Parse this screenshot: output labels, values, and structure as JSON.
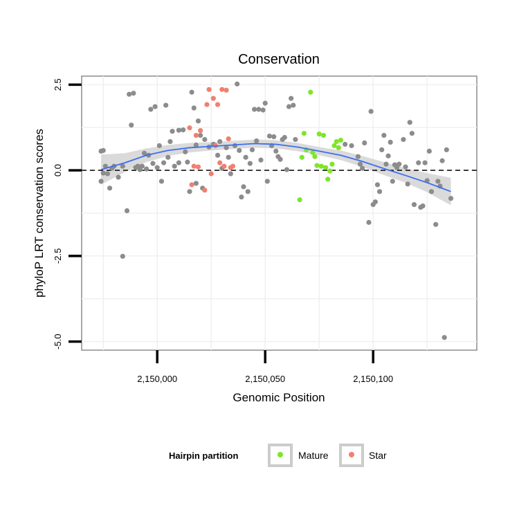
{
  "chart_data": {
    "type": "scatter",
    "title": "Conservation",
    "xlabel": "Genomic Position",
    "ylabel": "phyloP LRT conservation scores",
    "xlim": [
      2149965,
      2150148
    ],
    "ylim": [
      -5.25,
      2.75
    ],
    "x_ticks": [
      {
        "value": 2150000,
        "label": "2,150,000"
      },
      {
        "value": 2150050,
        "label": "2,150,050"
      },
      {
        "value": 2150100,
        "label": "2,150,100"
      }
    ],
    "y_ticks": [
      {
        "value": 2.5,
        "label": "2.5"
      },
      {
        "value": 0.0,
        "label": "0.0"
      },
      {
        "value": -2.5,
        "label": "-2.5"
      },
      {
        "value": -5.0,
        "label": "-5.0"
      }
    ],
    "reference_line": {
      "y": 0,
      "style": "dashed"
    },
    "grid": true,
    "legend": {
      "title": "Hairpin partition",
      "position": "bottom",
      "entries": [
        {
          "label": "Mature",
          "color": "#7fe52b"
        },
        {
          "label": "Star",
          "color": "#f08070"
        }
      ]
    },
    "colors": {
      "other": "#8c8c8c",
      "Mature": "#7fe52b",
      "Star": "#f08070",
      "smooth": "#3a6ef0",
      "band": "#d3d3d3"
    },
    "series": [
      {
        "group": "other",
        "points": [
          [
            2149974,
            0.56
          ],
          [
            2149975,
            0.58
          ],
          [
            2149974,
            -0.32
          ],
          [
            2149975,
            -0.08
          ],
          [
            2149976,
            0.12
          ],
          [
            2149977,
            -0.1
          ],
          [
            2149978,
            -0.52
          ],
          [
            2149979,
            0.06
          ],
          [
            2149980,
            0.12
          ],
          [
            2149982,
            -0.2
          ],
          [
            2149984,
            0.12
          ],
          [
            2149984,
            -2.51
          ],
          [
            2149986,
            -1.18
          ],
          [
            2149987,
            2.22
          ],
          [
            2149989,
            2.25
          ],
          [
            2149988,
            1.32
          ],
          [
            2149990,
            0.08
          ],
          [
            2149991,
            0.12
          ],
          [
            2149992,
            0.02
          ],
          [
            2149993,
            0.12
          ],
          [
            2149994,
            0.5
          ],
          [
            2149995,
            0.04
          ],
          [
            2149996,
            0.44
          ],
          [
            2149997,
            1.78
          ],
          [
            2149998,
            0.2
          ],
          [
            2149999,
            1.86
          ],
          [
            2150000,
            0.08
          ],
          [
            2150001,
            0.72
          ],
          [
            2150002,
            -0.32
          ],
          [
            2150003,
            0.22
          ],
          [
            2150004,
            1.9
          ],
          [
            2150005,
            0.38
          ],
          [
            2150006,
            0.84
          ],
          [
            2150007,
            1.14
          ],
          [
            2150008,
            0.12
          ],
          [
            2150010,
            1.17
          ],
          [
            2150010,
            0.22
          ],
          [
            2150012,
            1.18
          ],
          [
            2150013,
            0.54
          ],
          [
            2150014,
            0.24
          ],
          [
            2150015,
            -0.62
          ],
          [
            2150016,
            2.28
          ],
          [
            2150017,
            1.82
          ],
          [
            2150018,
            -0.38
          ],
          [
            2150018,
            0.74
          ],
          [
            2150019,
            1.44
          ],
          [
            2150020,
            1.02
          ],
          [
            2150021,
            -0.52
          ],
          [
            2150022,
            0.9
          ],
          [
            2150024,
            0.68
          ],
          [
            2150026,
            0.76
          ],
          [
            2150028,
            0.44
          ],
          [
            2150029,
            0.84
          ],
          [
            2150030,
            0.06
          ],
          [
            2150032,
            0.66
          ],
          [
            2150033,
            0.38
          ],
          [
            2150034,
            -0.1
          ],
          [
            2150036,
            0.72
          ],
          [
            2150037,
            2.52
          ],
          [
            2150038,
            0.58
          ],
          [
            2150039,
            -0.78
          ],
          [
            2150040,
            -0.48
          ],
          [
            2150041,
            0.38
          ],
          [
            2150042,
            -0.62
          ],
          [
            2150043,
            0.2
          ],
          [
            2150044,
            0.6
          ],
          [
            2150045,
            1.78
          ],
          [
            2150046,
            0.86
          ],
          [
            2150047,
            1.78
          ],
          [
            2150048,
            0.3
          ],
          [
            2150049,
            1.76
          ],
          [
            2150050,
            1.96
          ],
          [
            2150051,
            -0.32
          ],
          [
            2150052,
            1.0
          ],
          [
            2150053,
            0.72
          ],
          [
            2150054,
            0.98
          ],
          [
            2150055,
            0.56
          ],
          [
            2150056,
            0.4
          ],
          [
            2150057,
            0.32
          ],
          [
            2150058,
            0.9
          ],
          [
            2150059,
            0.96
          ],
          [
            2150060,
            0.02
          ],
          [
            2150061,
            1.86
          ],
          [
            2150062,
            2.1
          ],
          [
            2150063,
            1.9
          ],
          [
            2150064,
            0.9
          ],
          [
            2150087,
            0.76
          ],
          [
            2150090,
            0.72
          ],
          [
            2150093,
            0.4
          ],
          [
            2150094,
            0.18
          ],
          [
            2150095,
            0.06
          ],
          [
            2150096,
            0.8
          ],
          [
            2150098,
            -1.52
          ],
          [
            2150099,
            1.72
          ],
          [
            2150100,
            -1.0
          ],
          [
            2150101,
            -0.92
          ],
          [
            2150102,
            -0.42
          ],
          [
            2150103,
            -0.62
          ],
          [
            2150104,
            0.6
          ],
          [
            2150105,
            1.02
          ],
          [
            2150106,
            0.18
          ],
          [
            2150107,
            0.42
          ],
          [
            2150108,
            0.82
          ],
          [
            2150109,
            -0.32
          ],
          [
            2150110,
            0.16
          ],
          [
            2150111,
            0.08
          ],
          [
            2150112,
            0.18
          ],
          [
            2150114,
            0.9
          ],
          [
            2150115,
            0.1
          ],
          [
            2150116,
            -0.4
          ],
          [
            2150117,
            1.4
          ],
          [
            2150118,
            1.08
          ],
          [
            2150119,
            -1.0
          ],
          [
            2150121,
            0.22
          ],
          [
            2150122,
            -1.08
          ],
          [
            2150123,
            -1.04
          ],
          [
            2150124,
            0.22
          ],
          [
            2150125,
            -0.3
          ],
          [
            2150126,
            0.56
          ],
          [
            2150127,
            -0.62
          ],
          [
            2150129,
            -1.58
          ],
          [
            2150130,
            -0.32
          ],
          [
            2150131,
            -0.46
          ],
          [
            2150132,
            0.28
          ],
          [
            2150133,
            -4.88
          ],
          [
            2150134,
            0.6
          ],
          [
            2150136,
            -0.82
          ]
        ]
      },
      {
        "group": "Mature",
        "points": [
          [
            2150066,
            -0.86
          ],
          [
            2150067,
            0.38
          ],
          [
            2150068,
            1.08
          ],
          [
            2150069,
            0.6
          ],
          [
            2150071,
            2.28
          ],
          [
            2150072,
            0.52
          ],
          [
            2150073,
            0.4
          ],
          [
            2150074,
            0.14
          ],
          [
            2150075,
            1.06
          ],
          [
            2150076,
            0.12
          ],
          [
            2150077,
            1.02
          ],
          [
            2150078,
            0.08
          ],
          [
            2150079,
            -0.26
          ],
          [
            2150080,
            -0.02
          ],
          [
            2150081,
            0.18
          ],
          [
            2150082,
            0.72
          ],
          [
            2150083,
            0.84
          ],
          [
            2150084,
            0.66
          ],
          [
            2150085,
            0.88
          ]
        ]
      },
      {
        "group": "Star",
        "points": [
          [
            2150015,
            1.24
          ],
          [
            2150016,
            -0.42
          ],
          [
            2150017,
            0.12
          ],
          [
            2150018,
            1.02
          ],
          [
            2150019,
            0.1
          ],
          [
            2150020,
            1.16
          ],
          [
            2150022,
            -0.58
          ],
          [
            2150023,
            1.92
          ],
          [
            2150024,
            2.36
          ],
          [
            2150025,
            -0.1
          ],
          [
            2150026,
            2.1
          ],
          [
            2150027,
            0.72
          ],
          [
            2150028,
            1.92
          ],
          [
            2150029,
            0.22
          ],
          [
            2150030,
            2.36
          ],
          [
            2150031,
            0.12
          ],
          [
            2150032,
            2.34
          ],
          [
            2150033,
            0.92
          ],
          [
            2150034,
            0.08
          ],
          [
            2150035,
            0.12
          ]
        ]
      }
    ],
    "smooth_curve": [
      [
        2149974,
        0.02
      ],
      [
        2149985,
        0.22
      ],
      [
        2149995,
        0.44
      ],
      [
        2150005,
        0.58
      ],
      [
        2150015,
        0.66
      ],
      [
        2150025,
        0.7
      ],
      [
        2150035,
        0.74
      ],
      [
        2150045,
        0.78
      ],
      [
        2150055,
        0.76
      ],
      [
        2150065,
        0.68
      ],
      [
        2150075,
        0.56
      ],
      [
        2150085,
        0.44
      ],
      [
        2150095,
        0.26
      ],
      [
        2150105,
        0.05
      ],
      [
        2150115,
        -0.15
      ],
      [
        2150125,
        -0.36
      ],
      [
        2150136,
        -0.62
      ]
    ],
    "confidence_band": [
      [
        2149974,
        -0.42,
        0.46
      ],
      [
        2149985,
        -0.05,
        0.5
      ],
      [
        2149995,
        0.24,
        0.64
      ],
      [
        2150005,
        0.42,
        0.74
      ],
      [
        2150015,
        0.52,
        0.8
      ],
      [
        2150025,
        0.58,
        0.82
      ],
      [
        2150035,
        0.62,
        0.86
      ],
      [
        2150045,
        0.66,
        0.9
      ],
      [
        2150055,
        0.64,
        0.88
      ],
      [
        2150065,
        0.56,
        0.8
      ],
      [
        2150075,
        0.44,
        0.68
      ],
      [
        2150085,
        0.3,
        0.58
      ],
      [
        2150095,
        0.1,
        0.42
      ],
      [
        2150105,
        -0.14,
        0.24
      ],
      [
        2150115,
        -0.36,
        0.06
      ],
      [
        2150125,
        -0.64,
        -0.08
      ],
      [
        2150136,
        -1.02,
        -0.22
      ]
    ]
  }
}
